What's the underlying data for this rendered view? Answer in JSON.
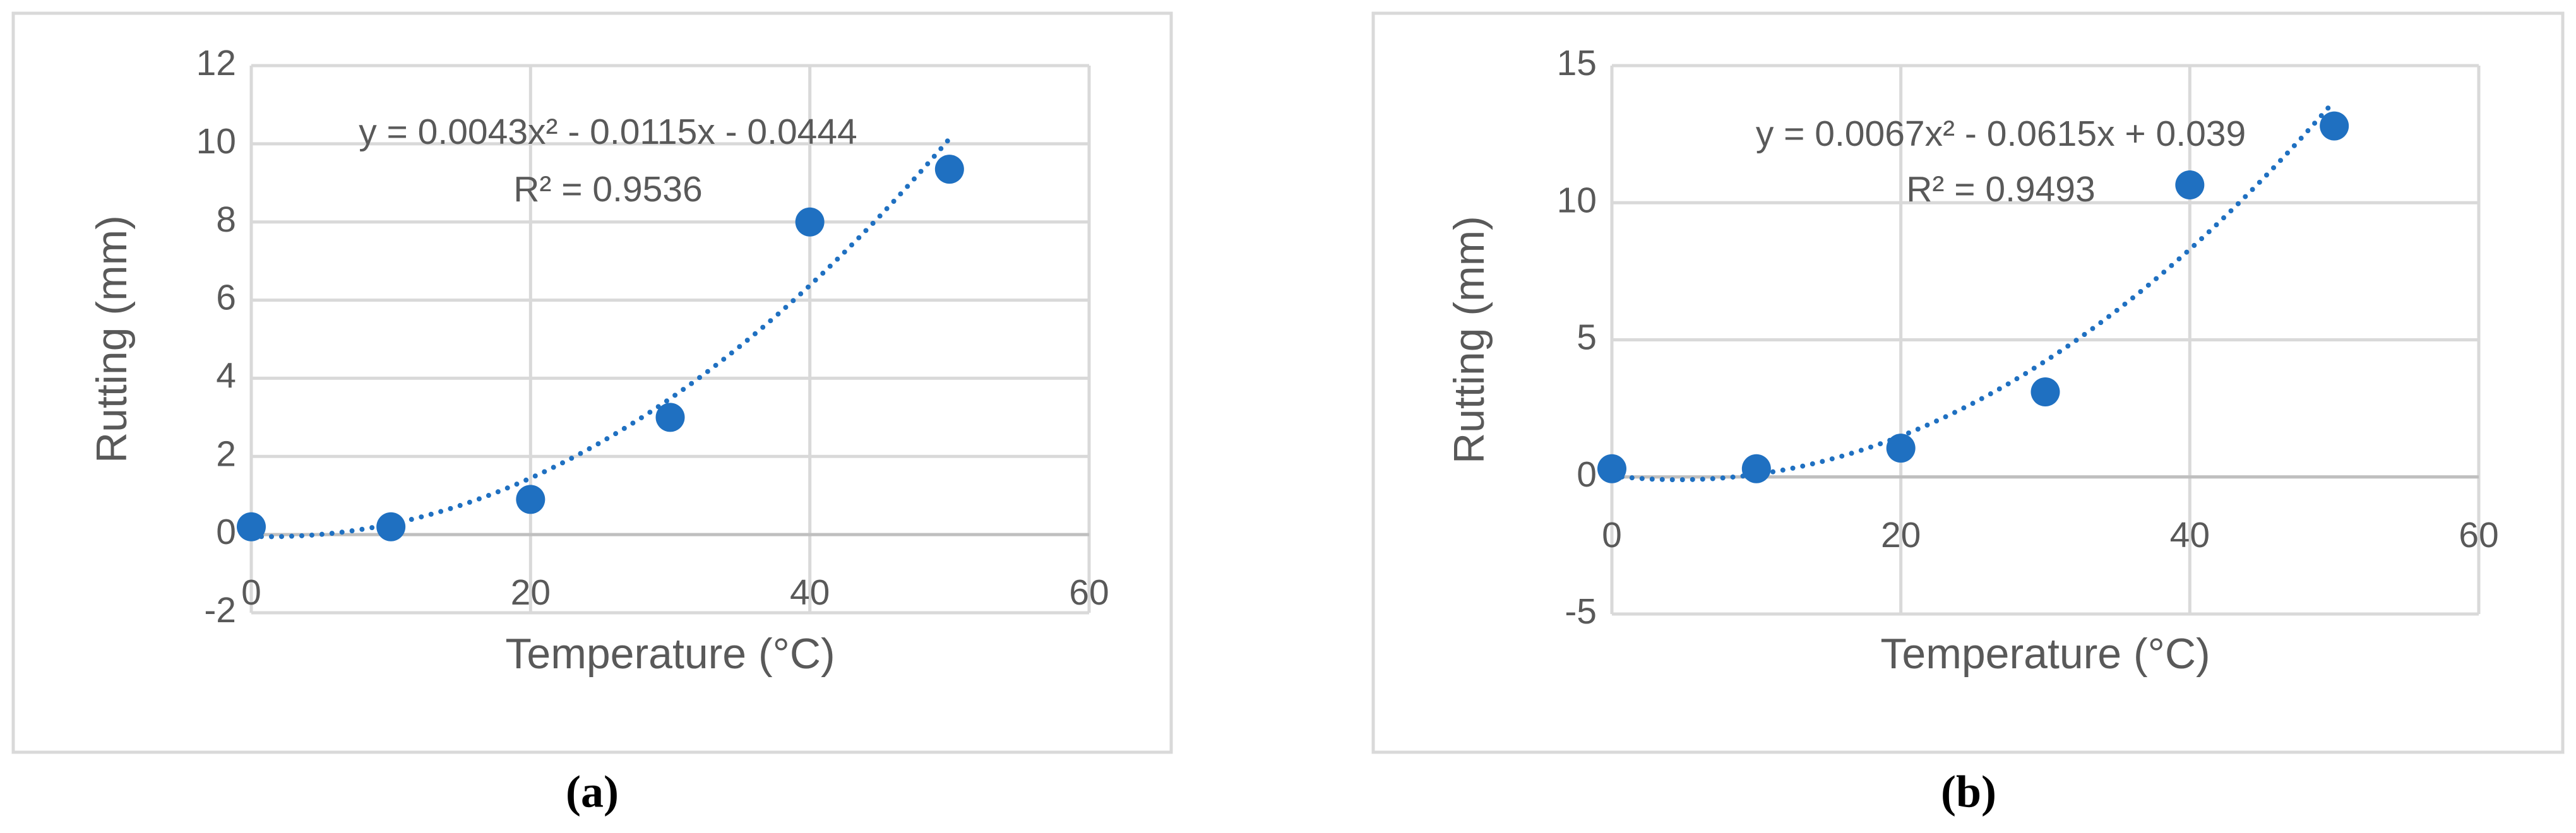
{
  "chart_data": [
    {
      "type": "scatter",
      "caption": "(a)",
      "xlabel": "Temperature (°C)",
      "ylabel": "Rutting (mm)",
      "x": [
        0,
        10,
        20,
        30,
        40,
        50
      ],
      "values": [
        0.2,
        0.2,
        0.9,
        3.0,
        8.0,
        9.35
      ],
      "color": "#1f70c1",
      "xlim": [
        0,
        60
      ],
      "xticks": [
        0,
        20,
        40,
        60
      ],
      "ylim": [
        -2,
        12
      ],
      "yticks": [
        -2,
        0,
        2,
        4,
        6,
        8,
        10,
        12
      ],
      "grid": true,
      "trendline": {
        "type": "polynomial",
        "coefficients": [
          0.0043,
          -0.0115,
          -0.0444
        ],
        "xlim": [
          0,
          50
        ],
        "equation": "y = 0.0043x² - 0.0115x - 0.0444",
        "r2_label": "R² = 0.9536"
      }
    },
    {
      "type": "scatter",
      "caption": "(b)",
      "xlabel": "Temperature (°C)",
      "ylabel": "Rutting (mm)",
      "x": [
        0,
        10,
        20,
        30,
        40,
        50
      ],
      "values": [
        0.3,
        0.3,
        1.05,
        3.1,
        10.65,
        12.8
      ],
      "color": "#1f70c1",
      "xlim": [
        0,
        60
      ],
      "xticks": [
        0,
        20,
        40,
        60
      ],
      "ylim": [
        -5,
        15
      ],
      "yticks": [
        -5,
        0,
        5,
        10,
        15
      ],
      "grid": true,
      "trendline": {
        "type": "polynomial",
        "coefficients": [
          0.0067,
          -0.0615,
          0.039
        ],
        "xlim": [
          0,
          50
        ],
        "equation": "y = 0.0067x² - 0.0615x + 0.039",
        "r2_label": "R² = 0.9493"
      }
    }
  ]
}
